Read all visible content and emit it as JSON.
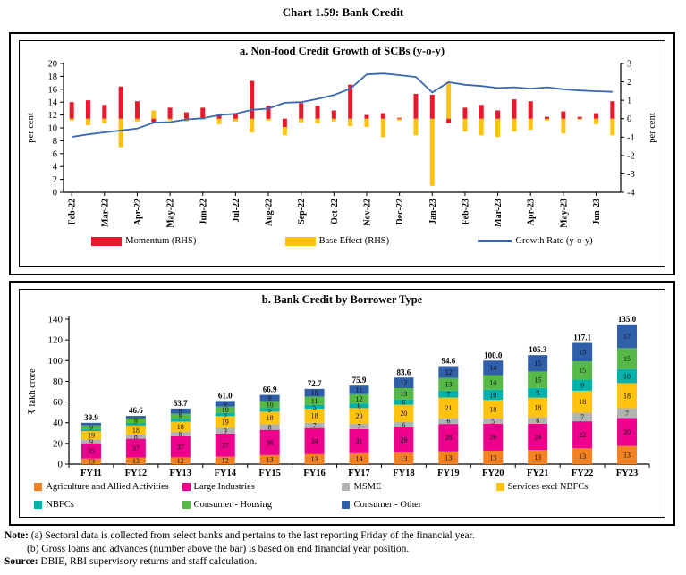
{
  "page_title": "Chart 1.59: Bank Credit",
  "colors": {
    "momentum_red": "#E8192C",
    "base_yellow": "#FFC20E",
    "growth_line_blue": "#3A67B5",
    "agri_orange": "#F58220",
    "large_pink": "#EC008C",
    "msme_gray": "#B2B2B2",
    "services_yellow": "#FFC20E",
    "nbfc_teal": "#00B2A9",
    "housing_green": "#56B947",
    "other_blue": "#2E5FA8",
    "axis_black": "#000000"
  },
  "panel_a": {
    "title": "a. Non-food Credit Growth of SCBs (y-o-y)",
    "y_left_label": "per cent",
    "y_right_label": "per cent",
    "legend": [
      {
        "label": "Momentum (RHS)",
        "type": "rect",
        "color": "#E8192C"
      },
      {
        "label": "Base Effect (RHS)",
        "type": "rect",
        "color": "#FFC20E"
      },
      {
        "label": "Growth Rate (y-o-y)",
        "type": "line",
        "color": "#3A67B5"
      }
    ]
  },
  "panel_b": {
    "title": "b. Bank Credit by Borrower Type",
    "y_label": "₹ lakh crore",
    "legend": [
      {
        "label": "Agriculture and Allied Activities",
        "color": "#F58220"
      },
      {
        "label": "Large Industries",
        "color": "#EC008C"
      },
      {
        "label": "MSME",
        "color": "#B2B2B2"
      },
      {
        "label": "Services excl NBFCs",
        "color": "#FFC20E"
      },
      {
        "label": "NBFCs",
        "color": "#00B2A9"
      },
      {
        "label": "Consumer - Housing",
        "color": "#56B947"
      },
      {
        "label": "Consumer - Other",
        "color": "#2E5FA8"
      }
    ]
  },
  "notes": {
    "note_label": "Note:",
    "note_a": "(a) Sectoral data is collected from select banks and pertains to the last reporting Friday of the financial year.",
    "note_b": "(b) Gross loans and advances (number above the bar) is based on end financial year position.",
    "source_label": "Source:",
    "source_text": "DBIE, RBI supervisory returns and staff calculation."
  },
  "chart_data": [
    {
      "type": "bar",
      "subtype": "fortnightly momentum/base-effect bars with y-o-y growth line",
      "title": "a. Non-food Credit Growth of SCBs (y-o-y)",
      "month_labels": [
        "Feb-22",
        "Mar-22",
        "Apr-22",
        "May-22",
        "Jun-22",
        "Jul-22",
        "Aug-22",
        "Sep-22",
        "Oct-22",
        "Nov-22",
        "Dec-22",
        "Jan-23",
        "Feb-23",
        "Mar-23",
        "Apr-23",
        "May-23",
        "Jun-23"
      ],
      "bars_per_month": 2,
      "ylabel_left": "per cent",
      "ylim_left": [
        0,
        20
      ],
      "ytick_step_left": 2,
      "ylabel_right": "per cent",
      "ylim_right": [
        -4,
        3
      ],
      "ytick_step_right": 1,
      "grid": false,
      "legend_position": "bottom",
      "series": [
        {
          "name": "Momentum (RHS)",
          "axis": "right",
          "type": "bar",
          "color": "#E8192C",
          "values": [
            0.9,
            1.0,
            0.75,
            1.75,
            0.95,
            -0.2,
            0.6,
            0.35,
            0.6,
            0.2,
            0.3,
            2.05,
            0.7,
            -0.45,
            0.85,
            0.7,
            0.45,
            1.85,
            0.2,
            0.3,
            0.05,
            1.35,
            1.3,
            -0.25,
            0.6,
            0.75,
            0.45,
            1.05,
            0.95,
            0.1,
            0.4,
            0.1,
            0.3,
            0.95
          ]
        },
        {
          "name": "Base Effect (RHS)",
          "axis": "right",
          "type": "bar",
          "color": "#FFC20E",
          "values": [
            -0.1,
            -0.35,
            -0.25,
            -1.55,
            -0.15,
            0.45,
            -0.1,
            -0.15,
            -0.05,
            -0.3,
            -0.15,
            -0.75,
            -0.1,
            -0.45,
            -0.2,
            -0.25,
            -0.15,
            -0.4,
            -0.45,
            -1.0,
            -0.1,
            -0.9,
            -3.65,
            2.0,
            -0.7,
            -0.9,
            -1.0,
            -0.7,
            -0.6,
            -0.1,
            -0.8,
            -0.05,
            -0.3,
            -0.9
          ]
        },
        {
          "name": "Growth Rate (y-o-y)",
          "axis": "left",
          "type": "line",
          "color": "#3A67B5",
          "values": [
            8.6,
            9.0,
            9.3,
            9.6,
            9.9,
            10.8,
            10.9,
            11.3,
            11.5,
            12.0,
            12.2,
            12.8,
            13.0,
            13.9,
            14.0,
            14.5,
            15.1,
            16.1,
            18.3,
            18.45,
            18.2,
            17.9,
            15.5,
            17.1,
            16.7,
            16.5,
            16.2,
            16.3,
            16.1,
            16.3,
            16.0,
            15.8,
            15.7,
            15.6
          ]
        }
      ]
    },
    {
      "type": "bar",
      "subtype": "stacked shares (%) with total value label above each bar",
      "title": "b. Bank Credit by Borrower Type",
      "categories": [
        "FY11",
        "FY12",
        "FY13",
        "FY14",
        "FY15",
        "FY16",
        "FY17",
        "FY18",
        "FY19",
        "FY20",
        "FY21",
        "FY22",
        "FY23"
      ],
      "totals_lakh_crore": [
        39.9,
        46.6,
        53.7,
        61.0,
        66.9,
        72.7,
        75.9,
        83.6,
        94.6,
        100.0,
        105.3,
        117.1,
        135.0
      ],
      "ylabel": "₹ lakh crore",
      "ylim": [
        0,
        140
      ],
      "ytick_step": 20,
      "grid": false,
      "legend_position": "bottom",
      "series": [
        {
          "name": "Agriculture and Allied Activities",
          "color": "#F58220",
          "shares_pct": [
            13,
            13,
            12,
            12,
            13,
            13,
            14,
            13,
            13,
            13,
            13,
            13,
            13
          ]
        },
        {
          "name": "Large Industries",
          "color": "#EC008C",
          "shares_pct": [
            35,
            37,
            37,
            37,
            36,
            34,
            31,
            29,
            28,
            26,
            24,
            22,
            20
          ]
        },
        {
          "name": "MSME",
          "color": "#B2B2B2",
          "shares_pct": [
            9,
            8,
            8,
            9,
            8,
            7,
            7,
            6,
            6,
            5,
            6,
            7,
            7
          ]
        },
        {
          "name": "Services excl NBFCs",
          "color": "#FFC20E",
          "shares_pct": [
            19,
            18,
            18,
            19,
            18,
            18,
            20,
            20,
            21,
            18,
            18,
            18,
            18
          ]
        },
        {
          "name": "NBFCs",
          "color": "#00B2A9",
          "shares_pct": [
            4,
            5,
            5,
            5,
            5,
            5,
            6,
            6,
            7,
            10,
            9,
            9,
            10
          ]
        },
        {
          "name": "Consumer - Housing",
          "color": "#56B947",
          "shares_pct": [
            9,
            9,
            9,
            10,
            10,
            11,
            12,
            13,
            13,
            14,
            15,
            15,
            15
          ]
        },
        {
          "name": "Consumer - Other",
          "color": "#2E5FA8",
          "shares_pct": [
            6,
            5,
            9,
            9,
            9,
            10,
            11,
            12,
            12,
            14,
            15,
            15,
            17
          ]
        }
      ]
    }
  ]
}
